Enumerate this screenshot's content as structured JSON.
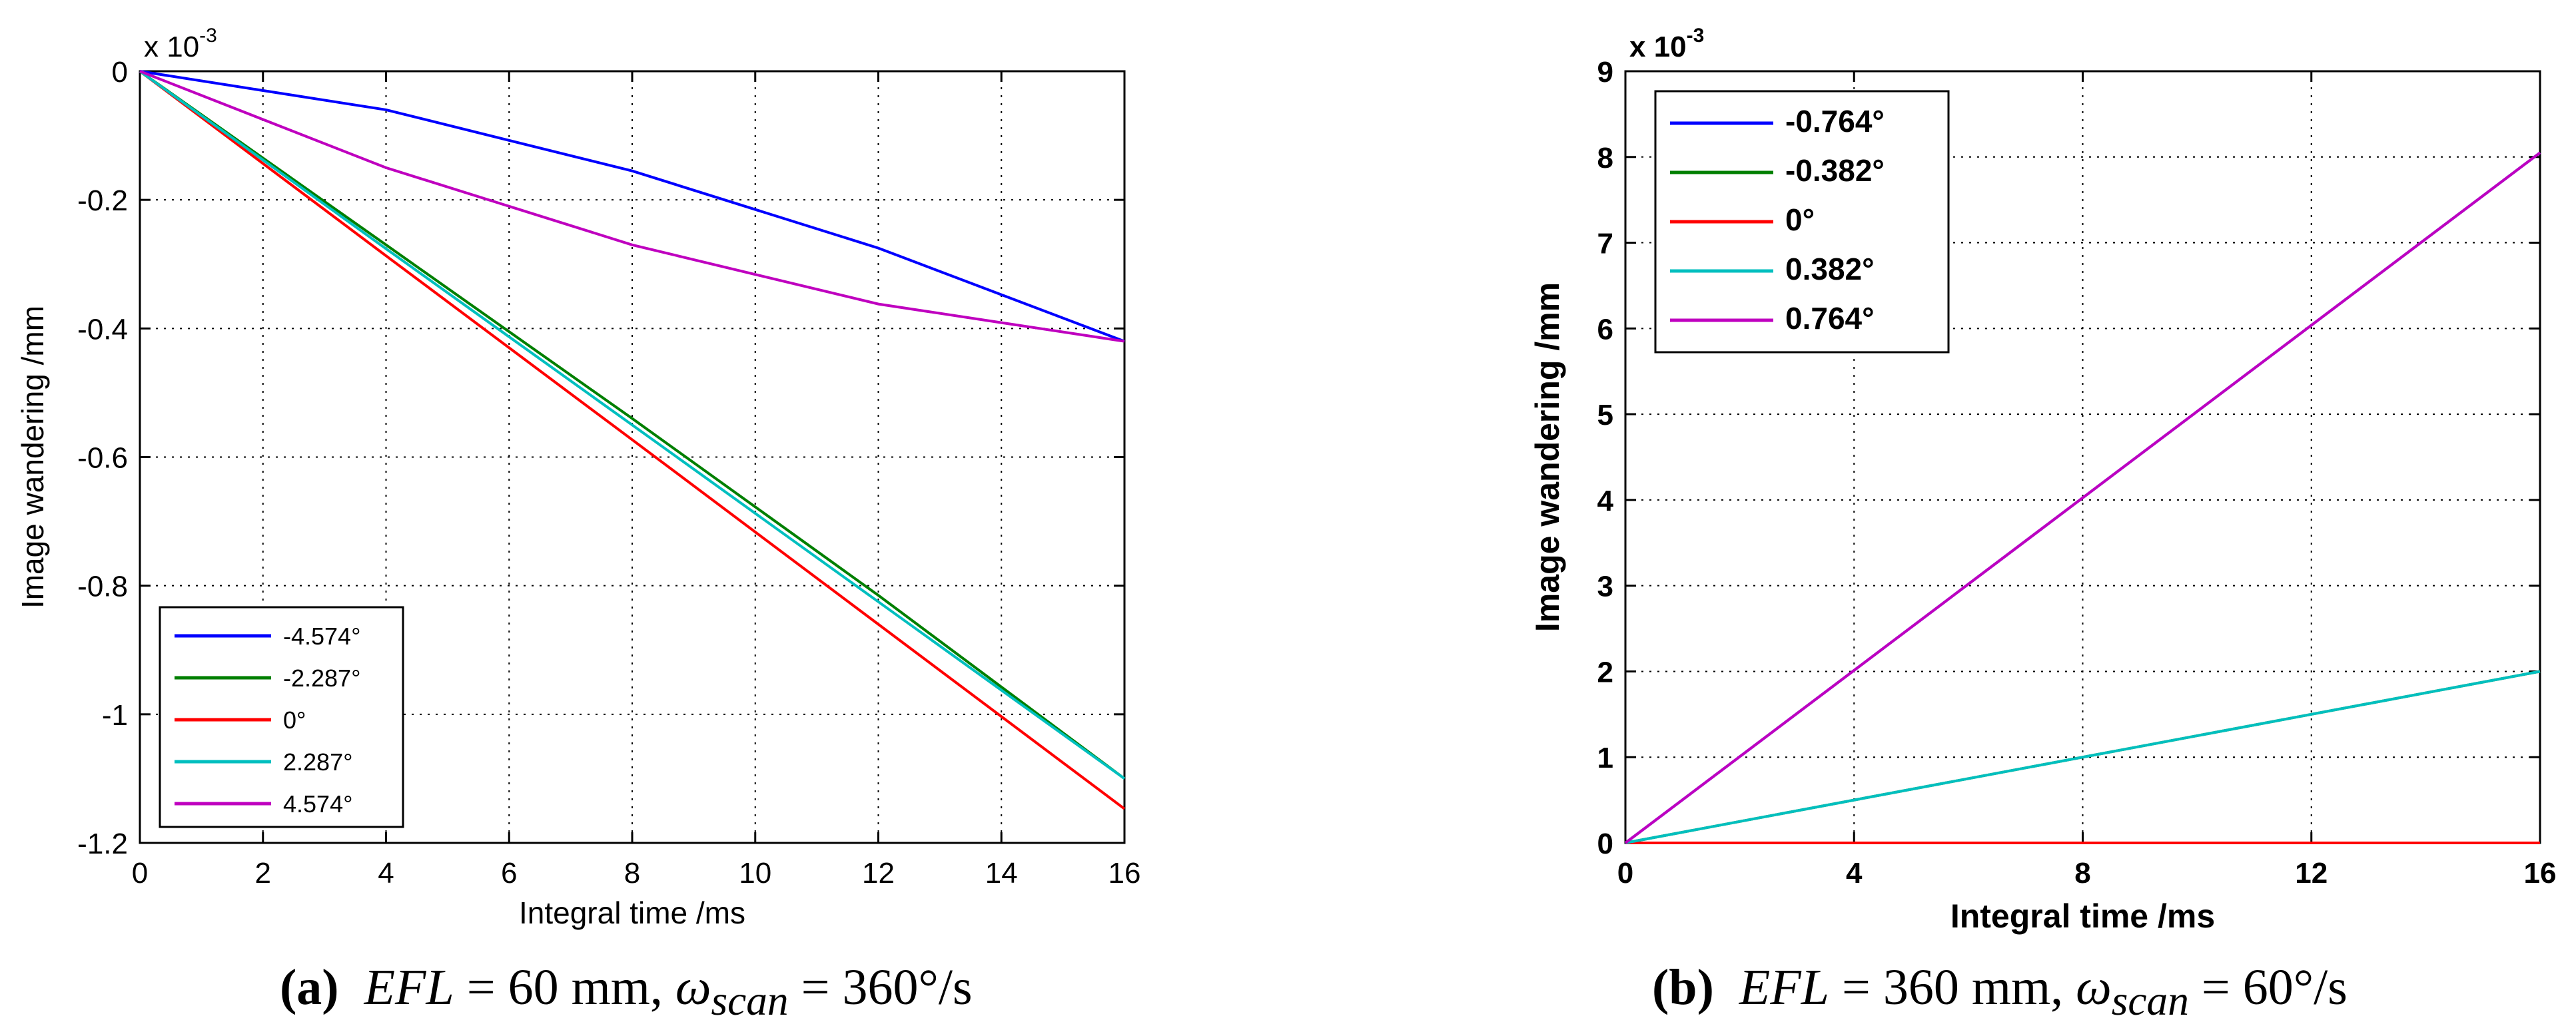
{
  "chart_data": [
    {
      "type": "line",
      "xlabel": "Integral time /ms",
      "ylabel": "Image wandering /mm",
      "exponent_label": "x 10",
      "exponent_power": "-3",
      "xlim": [
        0,
        16
      ],
      "ylim": [
        -1.2,
        0
      ],
      "xticks": [
        "0",
        "2",
        "4",
        "6",
        "8",
        "10",
        "12",
        "14",
        "16"
      ],
      "yticks": [
        "0",
        "-0.2",
        "-0.4",
        "-0.6",
        "-0.8",
        "-1",
        "-1.2"
      ],
      "grid": true,
      "legend_position": "bottom-left",
      "x": [
        0,
        4,
        8,
        12,
        16
      ],
      "series": [
        {
          "name": "-4.574°",
          "color": "#0000ff",
          "values": [
            0,
            -0.06,
            -0.155,
            -0.275,
            -0.42
          ]
        },
        {
          "name": "-2.287°",
          "color": "#007f00",
          "values": [
            0,
            -0.27,
            -0.54,
            -0.815,
            -1.1
          ]
        },
        {
          "name": "0°",
          "color": "#ff0000",
          "values": [
            0,
            -0.287,
            -0.573,
            -0.86,
            -1.147
          ]
        },
        {
          "name": "2.287°",
          "color": "#00bfbf",
          "values": [
            0,
            -0.276,
            -0.55,
            -0.825,
            -1.1
          ]
        },
        {
          "name": "4.574°",
          "color": "#bf00bf",
          "values": [
            0,
            -0.15,
            -0.27,
            -0.362,
            -0.42
          ]
        }
      ],
      "caption": {
        "label": "(a)",
        "formula_a": "EFL",
        "equals_a": " = 60 mm, ",
        "formula_b": "ω",
        "subscript_b": "scan",
        "equals_b": " = 360°/s"
      }
    },
    {
      "type": "line",
      "xlabel": "Integral time /ms",
      "ylabel": "Image wandering /mm",
      "exponent_label": "x 10",
      "exponent_power": "-3",
      "xlim": [
        0,
        16
      ],
      "ylim": [
        0,
        9
      ],
      "xticks": [
        "0",
        "4",
        "8",
        "12",
        "16"
      ],
      "yticks": [
        "0",
        "1",
        "2",
        "3",
        "4",
        "5",
        "6",
        "7",
        "8",
        "9"
      ],
      "grid": true,
      "legend_position": "top-left",
      "x": [
        0,
        16
      ],
      "series": [
        {
          "name": "-0.764°",
          "color": "#0000ff",
          "values": [
            0,
            8.05
          ]
        },
        {
          "name": "-0.382°",
          "color": "#007f00",
          "values": [
            0,
            2.0
          ]
        },
        {
          "name": "0°",
          "color": "#ff0000",
          "values": [
            0,
            0
          ]
        },
        {
          "name": "0.382°",
          "color": "#00bfbf",
          "values": [
            0,
            2.0
          ]
        },
        {
          "name": "0.764°",
          "color": "#bf00bf",
          "values": [
            0,
            8.05
          ]
        }
      ],
      "caption": {
        "label": "(b)",
        "formula_a": "EFL",
        "equals_a": " = 360 mm, ",
        "formula_b": "ω",
        "subscript_b": "scan",
        "equals_b": " = 60°/s"
      }
    }
  ]
}
